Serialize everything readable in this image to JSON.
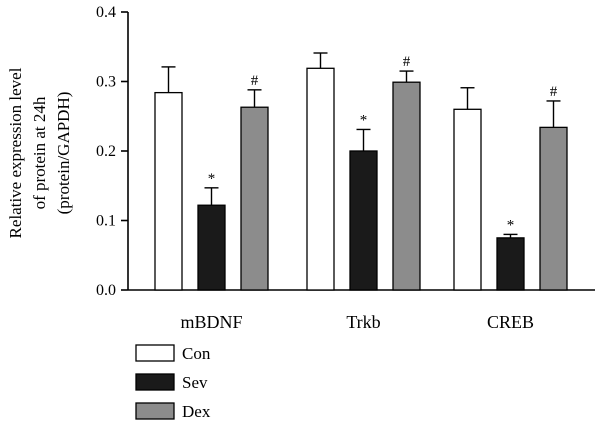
{
  "chart_data": {
    "type": "bar",
    "ylabel_lines": [
      "Relative expression level",
      "of protein at 24h",
      "(protein/GAPDH)"
    ],
    "xlabel": "",
    "ylim": [
      0,
      0.4
    ],
    "yticks": [
      "0.0",
      "0.1",
      "0.2",
      "0.3",
      "0.4"
    ],
    "categories": [
      "mBDNF",
      "Trkb",
      "CREB"
    ],
    "series": [
      {
        "name": "Con",
        "color": "#ffffff",
        "values": [
          0.284,
          0.319,
          0.26
        ],
        "errors": [
          0.037,
          0.022,
          0.031
        ],
        "markers": [
          "",
          "",
          ""
        ]
      },
      {
        "name": "Sev",
        "color": "#1a1a1a",
        "values": [
          0.122,
          0.2,
          0.075
        ],
        "errors": [
          0.025,
          0.031,
          0.005
        ],
        "markers": [
          "*",
          "*",
          "*"
        ]
      },
      {
        "name": "Dex",
        "color": "#8c8c8c",
        "values": [
          0.263,
          0.299,
          0.234
        ],
        "errors": [
          0.025,
          0.016,
          0.038
        ],
        "markers": [
          "#",
          "#",
          "#"
        ]
      }
    ],
    "legend_position": "bottom-left",
    "grid": false
  }
}
